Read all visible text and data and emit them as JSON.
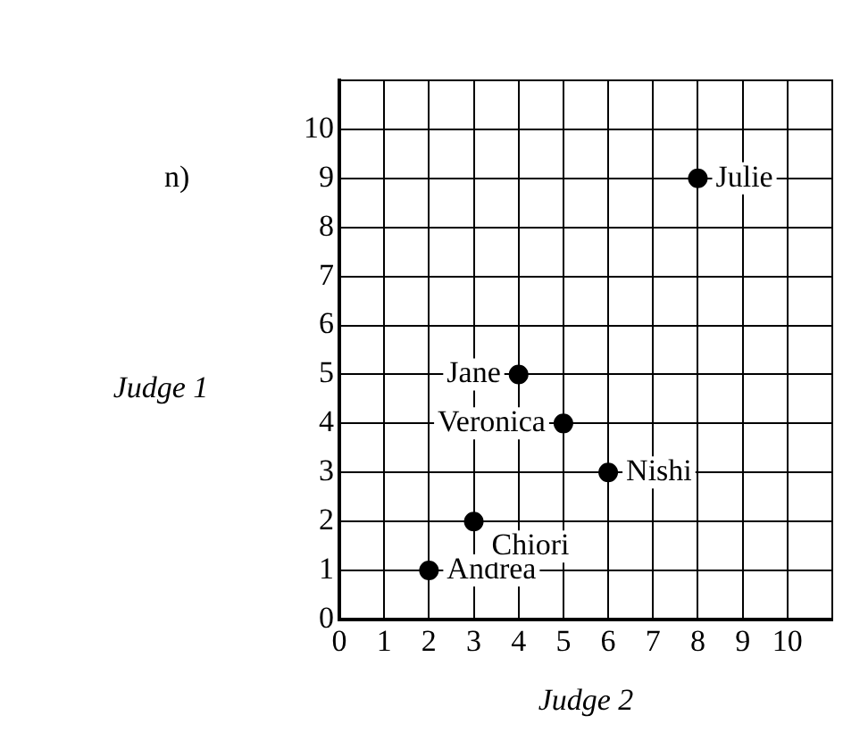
{
  "chart_data": {
    "type": "scatter",
    "xlabel": "Judge 2",
    "ylabel": "Judge 1",
    "x": [
      2,
      3,
      6,
      5,
      4,
      8
    ],
    "values": [
      1,
      2,
      3,
      4,
      5,
      9
    ],
    "color": "#000000",
    "marker": "circle",
    "grid": true,
    "xlim": [
      0,
      11
    ],
    "ylim": [
      0,
      11
    ],
    "xticks": [
      0,
      1,
      2,
      3,
      4,
      5,
      6,
      7,
      8,
      9,
      10
    ],
    "yticks": [
      0,
      1,
      2,
      3,
      4,
      5,
      6,
      7,
      8,
      9,
      10
    ],
    "annotations": [
      "n)",
      {
        "text": "Andrea",
        "x": 2,
        "y": 1
      },
      {
        "text": "Chiori",
        "x": 3,
        "y": 2
      },
      {
        "text": "Nishi",
        "x": 6,
        "y": 3
      },
      {
        "text": "Veronica",
        "x": 5,
        "y": 4
      },
      {
        "text": "Jane",
        "x": 4,
        "y": 5
      },
      {
        "text": "Julie",
        "x": 8,
        "y": 9
      }
    ]
  }
}
